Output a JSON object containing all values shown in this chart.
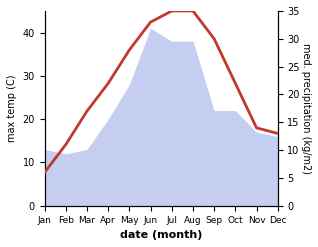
{
  "months": [
    "Jan",
    "Feb",
    "Mar",
    "Apr",
    "May",
    "Jun",
    "Jul",
    "Aug",
    "Sep",
    "Oct",
    "Nov",
    "Dec"
  ],
  "temp": [
    13,
    12,
    13,
    20,
    28,
    41,
    38,
    38,
    22,
    22,
    17,
    16
  ],
  "precip": [
    6,
    11,
    17,
    22,
    28,
    33,
    35,
    35,
    30,
    22,
    14,
    13
  ],
  "temp_fill_color": "#c5cef0",
  "precip_line_color": "#c0392b",
  "xlabel": "date (month)",
  "ylabel_left": "max temp (C)",
  "ylabel_right": "med. precipitation (kg/m2)",
  "ylim_left": [
    0,
    45
  ],
  "ylim_right": [
    0,
    35
  ],
  "yticks_left": [
    0,
    10,
    20,
    30,
    40
  ],
  "yticks_right": [
    0,
    5,
    10,
    15,
    20,
    25,
    30,
    35
  ],
  "bg_color": "#ffffff",
  "line_width": 2.0,
  "xlabel_fontsize": 8,
  "ylabel_fontsize": 7,
  "tick_fontsize": 7,
  "xtick_fontsize": 6.5
}
